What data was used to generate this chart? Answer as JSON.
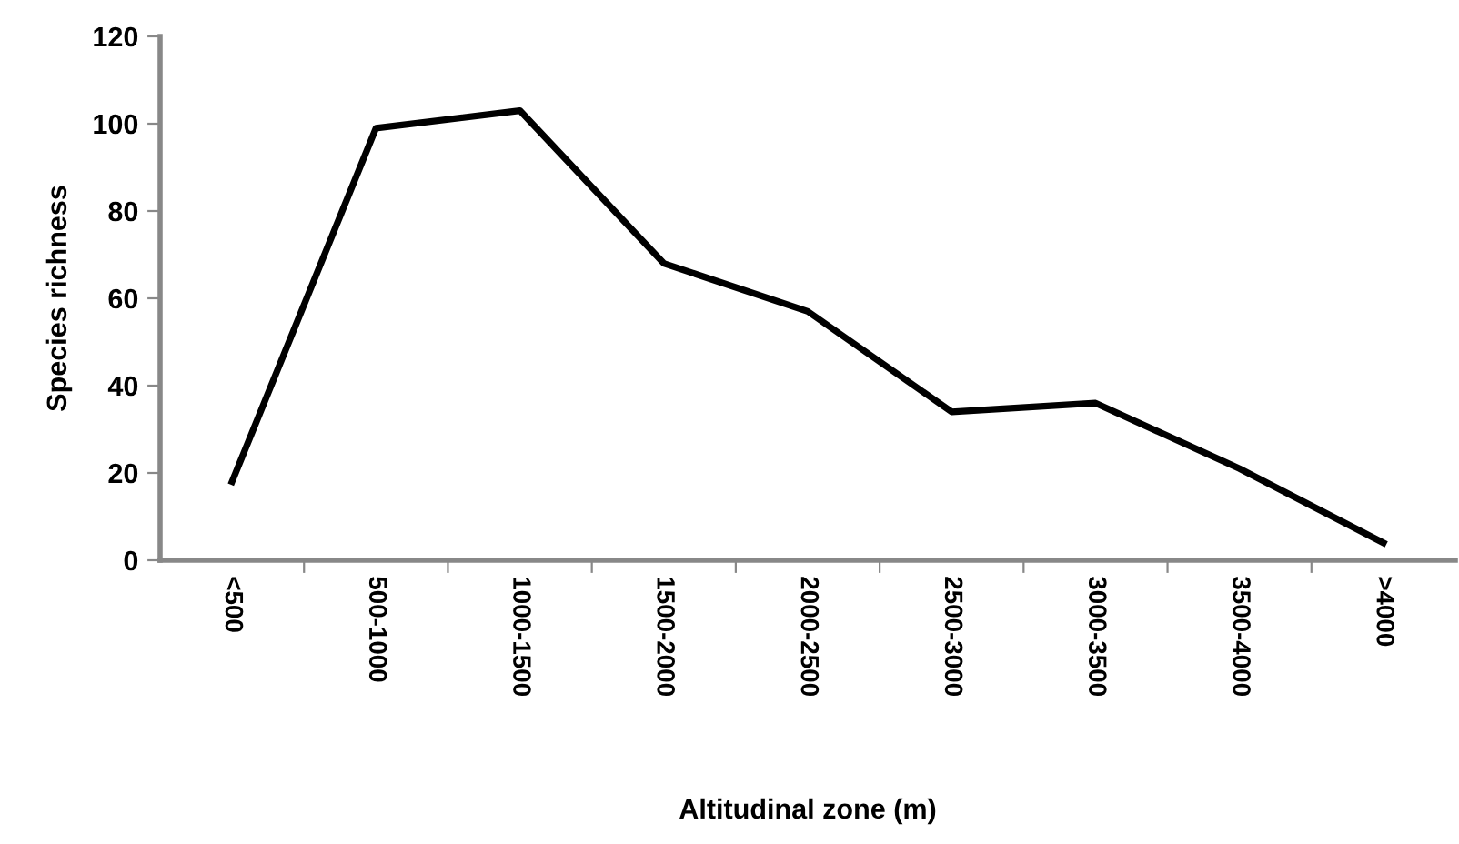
{
  "chart_data": {
    "type": "line",
    "xlabel": "Altitudinal zone (m)",
    "ylabel": "Species richness",
    "categories": [
      "<500",
      "500-1000",
      "1000-1500",
      "1500-2000",
      "2000-2500",
      "2500-3000",
      "3000-3500",
      "3500-4000",
      ">4000"
    ],
    "series": [
      {
        "color": "#000000",
        "values": [
          18,
          99,
          103,
          68,
          57,
          34,
          36,
          21,
          4
        ]
      }
    ],
    "ylim": [
      0,
      120
    ],
    "yticks": [
      0,
      20,
      40,
      60,
      80,
      100,
      120
    ],
    "grid": false,
    "legend": false,
    "marker": "none",
    "line_style": "solid"
  }
}
